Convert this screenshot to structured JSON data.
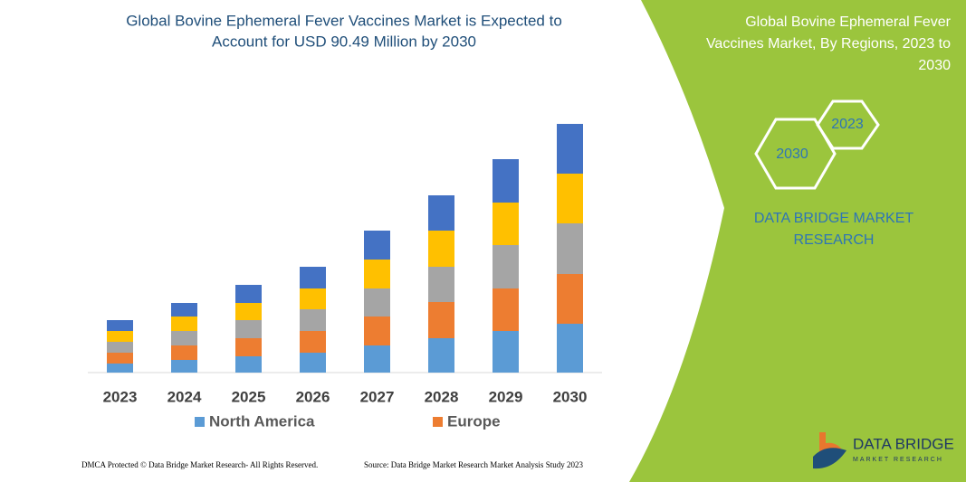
{
  "chart_data": {
    "type": "bar",
    "stacked": true,
    "title": [
      "Global Bovine Ephemeral Fever Vaccines Market is Expected to",
      "Account for USD 90.49 Million by 2030"
    ],
    "categories": [
      "2023",
      "2024",
      "2025",
      "2026",
      "2027",
      "2028",
      "2029",
      "2030"
    ],
    "series": [
      {
        "name": "North America",
        "color": "#5b9bd5",
        "values": [
          10,
          14,
          18,
          22,
          30,
          38,
          46,
          54
        ]
      },
      {
        "name": "Europe",
        "color": "#ed7d31",
        "values": [
          12,
          16,
          20,
          24,
          32,
          40,
          47,
          55
        ]
      },
      {
        "color": "#a5a5a5",
        "values": [
          12,
          16,
          20,
          24,
          31,
          39,
          48,
          56
        ]
      },
      {
        "color": "#ffc000",
        "values": [
          12,
          16,
          19,
          23,
          32,
          40,
          47,
          55
        ]
      },
      {
        "color": "#4472c4",
        "values": [
          12,
          15,
          20,
          24,
          32,
          39,
          48,
          55
        ]
      }
    ],
    "ylim": [
      0,
      280
    ]
  },
  "panel": {
    "title": [
      "Global Bovine Ephemeral Fever",
      "Vaccines Market, By Regions, 2023 to",
      "2030"
    ],
    "hexagons": [
      "2023",
      "2030"
    ],
    "brand": [
      "DATA BRIDGE MARKET",
      "RESEARCH"
    ]
  },
  "footer": {
    "copyright": "DMCA Protected © Data Bridge Market Research-  All Rights Reserved.",
    "source": "Source: Data Bridge Market Research  Market Analysis Study 2023"
  },
  "logo": {
    "name": "DATA BRIDGE",
    "tagline": "MARKET RESEARCH"
  }
}
